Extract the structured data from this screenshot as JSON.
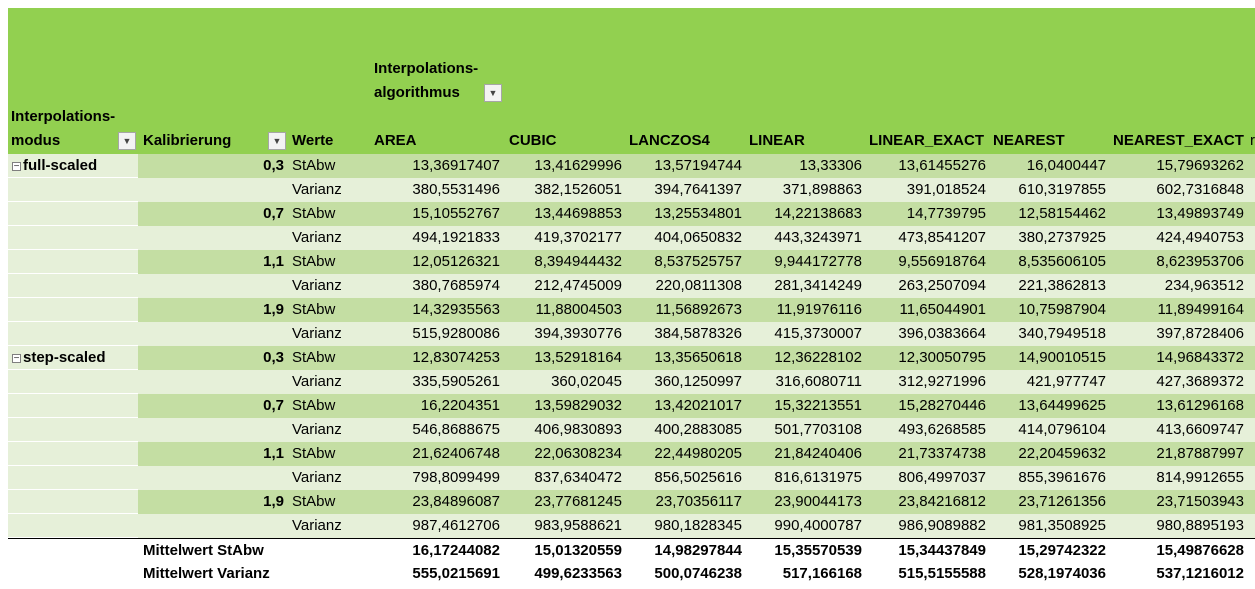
{
  "header": {
    "column_field_line1": "Interpolations-",
    "column_field_line2": "algorithmus",
    "row_field1_line1": "Interpolations-",
    "row_field1_line2": "modus",
    "row_field2": "Kalibrierung",
    "values_field": "Werte",
    "columns": [
      "AREA",
      "CUBIC",
      "LANCZOS4",
      "LINEAR",
      "LINEAR_EXACT",
      "NEAREST",
      "NEAREST_EXACT"
    ],
    "overflow_text": "r",
    "collapse_symbol": "−",
    "dropdown_icon": "chevron-down-icon",
    "filter_icon": "filter-icon"
  },
  "groups": [
    {
      "modus": "full-scaled",
      "rows": [
        {
          "kal": "0,3",
          "werte": "StAbw",
          "values": [
            "13,36917407",
            "13,41629996",
            "13,57194744",
            "13,33306",
            "13,61455276",
            "16,0400447",
            "15,79693262"
          ]
        },
        {
          "kal": "",
          "werte": "Varianz",
          "values": [
            "380,5531496",
            "382,1526051",
            "394,7641397",
            "371,898863",
            "391,018524",
            "610,3197855",
            "602,7316848"
          ]
        },
        {
          "kal": "0,7",
          "werte": "StAbw",
          "values": [
            "15,10552767",
            "13,44698853",
            "13,25534801",
            "14,22138683",
            "14,7739795",
            "12,58154462",
            "13,49893749"
          ]
        },
        {
          "kal": "",
          "werte": "Varianz",
          "values": [
            "494,1921833",
            "419,3702177",
            "404,0650832",
            "443,3243971",
            "473,8541207",
            "380,2737925",
            "424,4940753"
          ]
        },
        {
          "kal": "1,1",
          "werte": "StAbw",
          "values": [
            "12,05126321",
            "8,394944432",
            "8,537525757",
            "9,944172778",
            "9,556918764",
            "8,535606105",
            "8,623953706"
          ]
        },
        {
          "kal": "",
          "werte": "Varianz",
          "values": [
            "380,7685974",
            "212,4745009",
            "220,0811308",
            "281,3414249",
            "263,2507094",
            "221,3862813",
            "234,963512"
          ]
        },
        {
          "kal": "1,9",
          "werte": "StAbw",
          "values": [
            "14,32935563",
            "11,88004503",
            "11,56892673",
            "11,91976116",
            "11,65044901",
            "10,75987904",
            "11,89499164"
          ]
        },
        {
          "kal": "",
          "werte": "Varianz",
          "values": [
            "515,9280086",
            "394,3930776",
            "384,5878326",
            "415,3730007",
            "396,0383664",
            "340,7949518",
            "397,8728406"
          ]
        }
      ]
    },
    {
      "modus": "step-scaled",
      "rows": [
        {
          "kal": "0,3",
          "werte": "StAbw",
          "values": [
            "12,83074253",
            "13,52918164",
            "13,35650618",
            "12,36228102",
            "12,30050795",
            "14,90010515",
            "14,96843372"
          ]
        },
        {
          "kal": "",
          "werte": "Varianz",
          "values": [
            "335,5905261",
            "360,02045",
            "360,1250997",
            "316,6080711",
            "312,9271996",
            "421,977747",
            "427,3689372"
          ]
        },
        {
          "kal": "0,7",
          "werte": "StAbw",
          "values": [
            "16,2204351",
            "13,59829032",
            "13,42021017",
            "15,32213551",
            "15,28270446",
            "13,64499625",
            "13,61296168"
          ]
        },
        {
          "kal": "",
          "werte": "Varianz",
          "values": [
            "546,8688675",
            "406,9830893",
            "400,2883085",
            "501,7703108",
            "493,6268585",
            "414,0796104",
            "413,6609747"
          ]
        },
        {
          "kal": "1,1",
          "werte": "StAbw",
          "values": [
            "21,62406748",
            "22,06308234",
            "22,44980205",
            "21,84240406",
            "21,73374738",
            "22,20459632",
            "21,87887997"
          ]
        },
        {
          "kal": "",
          "werte": "Varianz",
          "values": [
            "798,8099499",
            "837,6340472",
            "856,5025616",
            "816,6131975",
            "806,4997037",
            "855,3961676",
            "814,9912655"
          ]
        },
        {
          "kal": "1,9",
          "werte": "StAbw",
          "values": [
            "23,84896087",
            "23,77681245",
            "23,70356117",
            "23,90044173",
            "23,84216812",
            "23,71261356",
            "23,71503943"
          ]
        },
        {
          "kal": "",
          "werte": "Varianz",
          "values": [
            "987,4612706",
            "983,9588621",
            "980,1828345",
            "990,4000787",
            "986,9089882",
            "981,3508925",
            "980,8895193"
          ]
        }
      ]
    }
  ],
  "totals": [
    {
      "label": "Mittelwert StAbw",
      "values": [
        "16,17244082",
        "15,01320559",
        "14,98297844",
        "15,35570539",
        "15,34437849",
        "15,29742322",
        "15,49876628"
      ]
    },
    {
      "label": "Mittelwert Varianz",
      "values": [
        "555,0215691",
        "499,6233563",
        "500,0746238",
        "517,166168",
        "515,5155588",
        "528,1974036",
        "537,1216012"
      ]
    }
  ],
  "colors": {
    "header_band": "#92d050",
    "row_dark": "#c4dea3",
    "row_light": "#e6f0d9",
    "modus_column": "#e6f0d9",
    "background": "#ffffff"
  }
}
